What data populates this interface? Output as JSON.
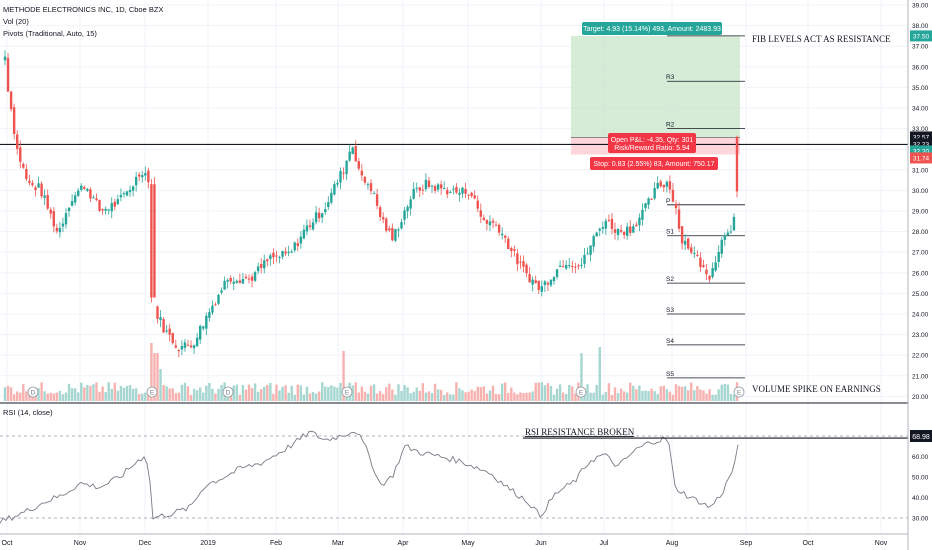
{
  "chart_data": [
    {
      "type": "candlestick",
      "title": "METHODE ELECTRONICS INC, 1D, Cboe BZX",
      "indicators": [
        "Vol (20)",
        "Pivots (Traditional, Auto, 15)"
      ],
      "x_axis_labels": [
        "Oct",
        "Nov",
        "Dec",
        "2019",
        "Feb",
        "Mar",
        "Apr",
        "May",
        "Jun",
        "Jul",
        "Aug",
        "Sep",
        "Oct",
        "Nov"
      ],
      "price_ticks": [
        "39.00",
        "38.00",
        "37.00",
        "36.00",
        "35.00",
        "34.00",
        "33.00",
        "32.00",
        "31.00",
        "30.00",
        "29.00",
        "28.00",
        "27.00",
        "26.00",
        "25.00",
        "24.00",
        "23.00",
        "22.00",
        "21.00",
        "20.00"
      ],
      "ylim": [
        20,
        39
      ],
      "price_key_points": [
        {
          "date": "Oct",
          "close": 36.5
        },
        {
          "date": "early Oct",
          "close": 35.0
        },
        {
          "date": "mid Oct",
          "close": 27.9
        },
        {
          "date": "late Oct",
          "close": 30.3
        },
        {
          "date": "Nov",
          "close": 29.2
        },
        {
          "date": "late Nov",
          "close": 30.6
        },
        {
          "date": "Dec (earnings)",
          "high": 34.0,
          "close": 30.5
        },
        {
          "date": "Dec",
          "close": 24.5
        },
        {
          "date": "mid Dec",
          "close": 22.3
        },
        {
          "date": "2019",
          "close": 25.2
        },
        {
          "date": "Feb",
          "close": 27.5
        },
        {
          "date": "Mar",
          "close": 32.3
        },
        {
          "date": "mid Mar",
          "close": 27.5
        },
        {
          "date": "Apr",
          "close": 30.1
        },
        {
          "date": "May",
          "close": 28.8
        },
        {
          "date": "late May",
          "close": 25.2
        },
        {
          "date": "Jun",
          "close": 26.4
        },
        {
          "date": "Jul",
          "close": 28.6
        },
        {
          "date": "late Jul",
          "close": 30.6
        },
        {
          "date": "Aug",
          "close": 27.7
        },
        {
          "date": "late Aug",
          "close": 25.6
        },
        {
          "date": "late Aug",
          "close": 28.3
        },
        {
          "date": "Sep (earnings)",
          "high": 32.57,
          "close": 29.95
        }
      ],
      "pivot_levels": [
        {
          "label": "R4",
          "value": 37.5
        },
        {
          "label": "R3",
          "value": 35.3
        },
        {
          "label": "R2",
          "value": 33.0
        },
        {
          "label": "P",
          "value": 29.3
        },
        {
          "label": "S1",
          "value": 27.8
        },
        {
          "label": "S2",
          "value": 25.5
        },
        {
          "label": "S3",
          "value": 24.0
        },
        {
          "label": "S4",
          "value": 22.5
        },
        {
          "label": "S5",
          "value": 20.9
        }
      ],
      "resistance_line": 32.23,
      "price_badges": [
        {
          "text": "37.50",
          "color": "#26a69a"
        },
        {
          "text": "32.57",
          "color": "#131722"
        },
        {
          "text": "32.23",
          "color": "#131722"
        },
        {
          "text": "32.20",
          "color": "#26a69a"
        },
        {
          "text": "31.74",
          "color": "#ef5350"
        }
      ],
      "position": {
        "target_label": "Target: 4.93 (15.14%) 493, Amount: 2483.93",
        "pnl_label": "Open P&L: -4.35, Qty: 301",
        "ratio_label": "Risk/Reward Ratio: 5.94",
        "stop_label": "Stop: 0.83 (2.55%) 83, Amount: 750.17",
        "entry": 32.57,
        "target": 37.5,
        "stop": 31.74
      },
      "annotations": [
        "FIB LEVELS ACT AS RESISTANCE",
        "VOLUME SPIKE ON EARNINGS"
      ],
      "event_markers": [
        "D",
        "E",
        "E",
        "D",
        "D",
        "E",
        "E",
        "E"
      ],
      "volume_key_points": [
        {
          "date": "Dec (earnings)",
          "relative": 0.9
        },
        {
          "date": "Mar (earnings)",
          "relative": 0.75
        },
        {
          "date": "Jun (earnings)",
          "relative": 0.7
        },
        {
          "date": "Jul",
          "relative": 1.0
        },
        {
          "date": "Sep (earnings)",
          "relative": 0.55
        }
      ]
    },
    {
      "type": "line",
      "title": "RSI (14, close)",
      "y_ticks": [
        "70.00",
        "60.00",
        "50.00",
        "40.00",
        "30.00"
      ],
      "ylim": [
        28,
        75
      ],
      "dashed_levels": [
        70,
        30
      ],
      "current_value": "68.98",
      "annotation": "RSI RESISTANCE BROKEN",
      "key_points": [
        {
          "date": "Oct",
          "value": 28
        },
        {
          "date": "Nov",
          "value": 47
        },
        {
          "date": "late Nov",
          "value": 52
        },
        {
          "date": "Dec",
          "value": 61
        },
        {
          "date": "Dec",
          "value": 30
        },
        {
          "date": "2019",
          "value": 46
        },
        {
          "date": "Feb",
          "value": 58
        },
        {
          "date": "Mar",
          "value": 72
        },
        {
          "date": "mid Mar",
          "value": 45
        },
        {
          "date": "Apr",
          "value": 65
        },
        {
          "date": "May",
          "value": 52
        },
        {
          "date": "Jun",
          "value": 31
        },
        {
          "date": "Jul",
          "value": 60
        },
        {
          "date": "late Jul",
          "value": 69
        },
        {
          "date": "Aug",
          "value": 40
        },
        {
          "date": "late Aug",
          "value": 36
        },
        {
          "date": "Sep",
          "value": 69
        }
      ]
    }
  ]
}
